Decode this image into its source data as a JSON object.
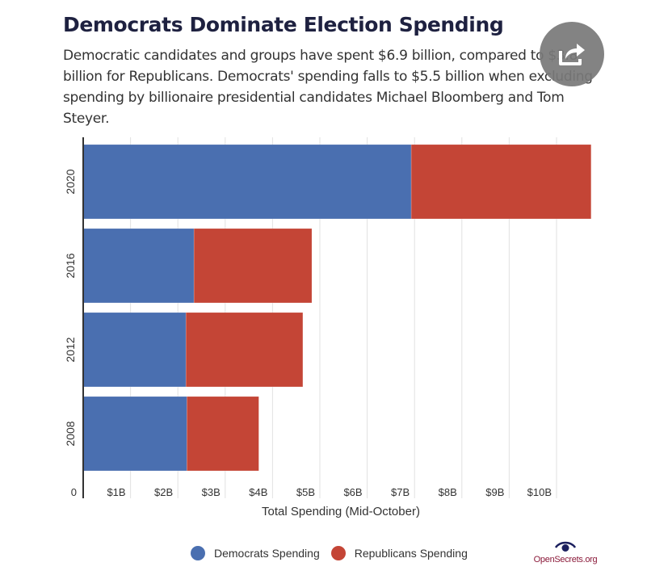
{
  "header": {
    "title": "Democrats Dominate Election Spending",
    "subtitle": "Democratic candidates and groups have spent $6.9 billion, compared to $3.8 billion for Republicans. Democrats' spending falls to $5.5 billion when excluding spending by billionaire presidential candidates Michael Bloomberg and Tom Steyer."
  },
  "share_button": {
    "icon": "share-icon"
  },
  "colors": {
    "democrats": "#4a6fb0",
    "republicans": "#c44536",
    "grid": "#e2e2e2",
    "axis": "#333333"
  },
  "chart_data": {
    "type": "bar",
    "orientation": "horizontal",
    "stacked": true,
    "title": "Democrats Dominate Election Spending",
    "xlabel": "Total Spending (Mid-October)",
    "ylabel": "",
    "categories": [
      "2020",
      "2016",
      "2012",
      "2008"
    ],
    "series": [
      {
        "name": "Democrats Spending",
        "values": [
          6.93,
          2.34,
          2.17,
          2.19
        ]
      },
      {
        "name": "Republicans Spending",
        "values": [
          3.8,
          2.49,
          2.47,
          1.52
        ]
      }
    ],
    "units": "billions USD",
    "xlim": [
      0,
      10.75
    ],
    "x_ticks": [
      0,
      1,
      2,
      3,
      4,
      5,
      6,
      7,
      8,
      9,
      10
    ],
    "x_tick_labels": [
      "0",
      "$1B",
      "$2B",
      "$3B",
      "$4B",
      "$5B",
      "$6B",
      "$7B",
      "$8B",
      "$9B",
      "$10B"
    ],
    "grid": true,
    "legend": "bottom"
  },
  "legend": {
    "items": [
      {
        "label": "Democrats Spending"
      },
      {
        "label": "Republicans Spending"
      }
    ]
  },
  "brand": {
    "text": "OpenSecrets.org",
    "icon": "eye-icon"
  }
}
